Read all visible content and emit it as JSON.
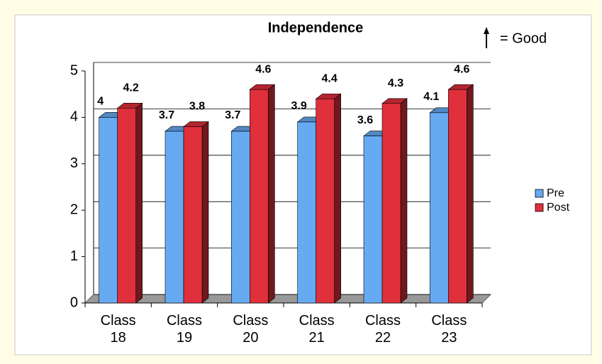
{
  "chart_data": {
    "type": "bar",
    "title": "Independence",
    "annotation": "= Good",
    "categories": [
      "Class 18",
      "Class 19",
      "Class 20",
      "Class 21",
      "Class 22",
      "Class 23"
    ],
    "series": [
      {
        "name": "Pre",
        "color": "#66aaf2",
        "values": [
          4,
          3.7,
          3.7,
          3.9,
          3.6,
          4.1
        ]
      },
      {
        "name": "Post",
        "color": "#e0303c",
        "values": [
          4.2,
          3.8,
          4.6,
          4.4,
          4.3,
          4.6
        ]
      }
    ],
    "ylim": [
      0,
      5
    ],
    "yticks": [
      0,
      1,
      2,
      3,
      4,
      5
    ],
    "grid": true,
    "legend": "right"
  }
}
